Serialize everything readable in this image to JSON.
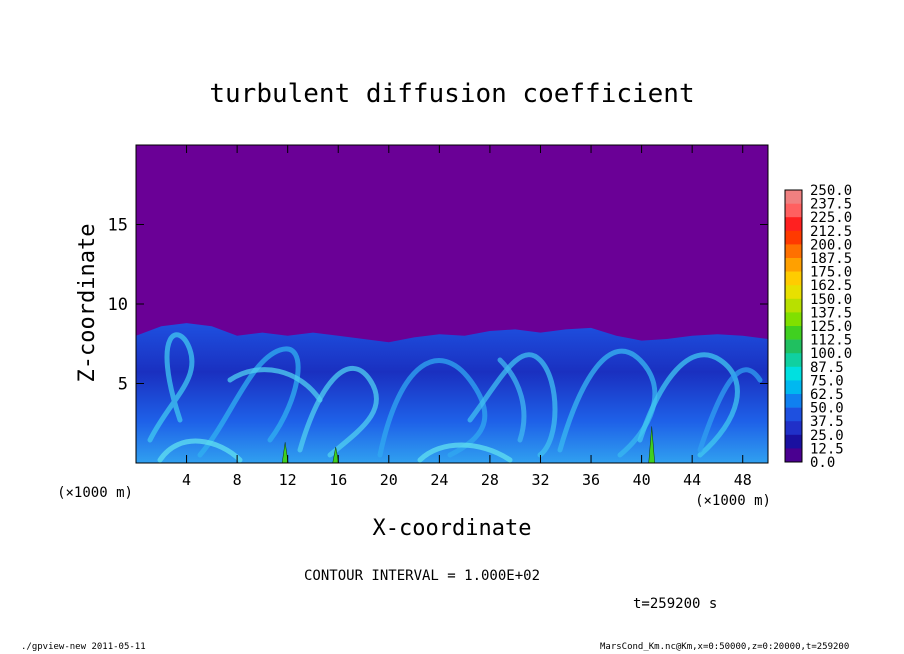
{
  "chart_data": {
    "type": "heatmap",
    "title": "turbulent diffusion coefficient",
    "xlabel": "X-coordinate",
    "ylabel": "Z-coordinate",
    "x_unit": "(×1000 m)",
    "y_unit": "(×1000 m)",
    "xlim": [
      0,
      50
    ],
    "ylim": [
      0,
      20
    ],
    "x_ticks": [
      4,
      8,
      12,
      16,
      20,
      24,
      28,
      32,
      36,
      40,
      44,
      48
    ],
    "y_ticks": [
      5,
      10,
      15
    ],
    "colorbar": {
      "levels": [
        "250.0",
        "237.5",
        "225.0",
        "212.5",
        "200.0",
        "187.5",
        "175.0",
        "162.5",
        "150.0",
        "137.5",
        "125.0",
        "112.5",
        "100.0",
        "87.5",
        "75.0",
        "62.5",
        "50.0",
        "37.5",
        "25.0",
        "12.5",
        "0.0"
      ],
      "colors": [
        "#f08080",
        "#ff6060",
        "#ff2020",
        "#ff3a00",
        "#ff7000",
        "#ffa000",
        "#ffcc00",
        "#e8e000",
        "#b8e000",
        "#80e000",
        "#40d020",
        "#20c060",
        "#10d0a0",
        "#00e0e0",
        "#00b8f0",
        "#1080f0",
        "#1e50e0",
        "#2030c8",
        "#1a10a0",
        "#4a0090"
      ],
      "background_color": "#6a0096"
    },
    "turbulent_layer_top": [
      [
        0,
        8.0
      ],
      [
        2,
        8.6
      ],
      [
        4,
        8.8
      ],
      [
        6,
        8.6
      ],
      [
        8,
        8.0
      ],
      [
        10,
        8.2
      ],
      [
        12,
        8.0
      ],
      [
        14,
        8.2
      ],
      [
        16,
        8.0
      ],
      [
        18,
        7.8
      ],
      [
        20,
        7.6
      ],
      [
        22,
        7.9
      ],
      [
        24,
        8.1
      ],
      [
        26,
        8.0
      ],
      [
        28,
        8.3
      ],
      [
        30,
        8.4
      ],
      [
        32,
        8.2
      ],
      [
        34,
        8.4
      ],
      [
        36,
        8.5
      ],
      [
        38,
        8.0
      ],
      [
        40,
        7.7
      ],
      [
        42,
        7.8
      ],
      [
        44,
        8.0
      ],
      [
        46,
        8.1
      ],
      [
        48,
        8.0
      ],
      [
        50,
        7.8
      ]
    ]
  },
  "contour_interval": "CONTOUR INTERVAL = 1.000E+02",
  "time_label": "t=259200 s",
  "footer_left": "./gpview-new  2011-05-11",
  "footer_right": "MarsCond_Km.nc@Km,x=0:50000,z=0:20000,t=259200"
}
